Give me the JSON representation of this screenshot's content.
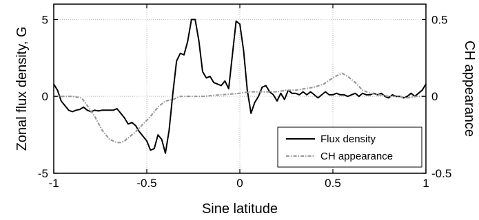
{
  "chart_data": {
    "type": "line",
    "xlabel": "Sine latitude",
    "ylabel_left": "Zonal flux density, G",
    "ylabel_right": "CH appearance",
    "xlim": [
      -1,
      1
    ],
    "ylim_left": [
      -5,
      6
    ],
    "ylim_right": [
      -0.5,
      0.6
    ],
    "x_ticks": [
      "-1",
      "-0.5",
      "0",
      "0.5",
      "1"
    ],
    "y_ticks_left": [
      "-5",
      "0",
      "5"
    ],
    "y_ticks_right": [
      "-0.5",
      "0",
      "0.5"
    ],
    "grid": true,
    "legend_position": "bottom-right",
    "series": [
      {
        "name": "Flux density",
        "axis": "left",
        "color": "#000000",
        "style": "solid",
        "x": [
          -1.0,
          -0.98,
          -0.96,
          -0.94,
          -0.92,
          -0.9,
          -0.88,
          -0.86,
          -0.84,
          -0.82,
          -0.8,
          -0.78,
          -0.76,
          -0.74,
          -0.72,
          -0.7,
          -0.68,
          -0.66,
          -0.64,
          -0.62,
          -0.6,
          -0.58,
          -0.56,
          -0.54,
          -0.52,
          -0.5,
          -0.48,
          -0.46,
          -0.44,
          -0.42,
          -0.4,
          -0.38,
          -0.36,
          -0.34,
          -0.32,
          -0.3,
          -0.28,
          -0.26,
          -0.24,
          -0.22,
          -0.2,
          -0.18,
          -0.16,
          -0.14,
          -0.12,
          -0.1,
          -0.08,
          -0.06,
          -0.04,
          -0.02,
          0.0,
          0.02,
          0.04,
          0.06,
          0.08,
          0.1,
          0.12,
          0.14,
          0.16,
          0.18,
          0.2,
          0.22,
          0.24,
          0.26,
          0.28,
          0.3,
          0.32,
          0.34,
          0.36,
          0.38,
          0.4,
          0.42,
          0.44,
          0.46,
          0.48,
          0.5,
          0.52,
          0.54,
          0.56,
          0.58,
          0.6,
          0.62,
          0.64,
          0.66,
          0.68,
          0.7,
          0.72,
          0.74,
          0.76,
          0.78,
          0.8,
          0.82,
          0.84,
          0.86,
          0.88,
          0.9,
          0.92,
          0.94,
          0.96,
          0.98,
          1.0
        ],
        "values": [
          0.8,
          0.4,
          -0.3,
          -0.6,
          -0.9,
          -1.0,
          -0.9,
          -0.85,
          -0.7,
          -0.9,
          -1.0,
          -0.9,
          -0.95,
          -0.9,
          -0.9,
          -0.9,
          -0.9,
          -0.8,
          -1.1,
          -1.4,
          -1.8,
          -1.7,
          -1.9,
          -2.3,
          -2.6,
          -2.9,
          -3.5,
          -3.4,
          -2.5,
          -2.8,
          -3.7,
          -2.2,
          0.2,
          2.3,
          2.8,
          2.7,
          3.6,
          5.0,
          5.0,
          3.6,
          1.6,
          1.2,
          1.3,
          0.9,
          0.8,
          0.7,
          1.0,
          0.5,
          2.7,
          4.9,
          4.7,
          3.0,
          0.4,
          -1.1,
          -0.4,
          0.0,
          0.6,
          0.7,
          0.3,
          0.1,
          -0.3,
          0.2,
          -0.2,
          0.4,
          0.2,
          0.2,
          0.1,
          0.3,
          0.1,
          0.3,
          0.1,
          -0.1,
          0.1,
          0.3,
          0.1,
          0.1,
          0.2,
          0.1,
          0.1,
          0.0,
          0.1,
          0.2,
          0.0,
          0.2,
          0.1,
          0.1,
          0.2,
          0.1,
          0.2,
          0.0,
          -0.1,
          0.1,
          0.0,
          0.0,
          -0.1,
          0.0,
          0.2,
          0.0,
          0.2,
          0.4,
          0.8
        ]
      },
      {
        "name": "CH appearance",
        "axis": "right",
        "color": "#999999",
        "style": "dash-dot",
        "x": [
          -1.0,
          -0.95,
          -0.9,
          -0.85,
          -0.82,
          -0.78,
          -0.74,
          -0.7,
          -0.66,
          -0.64,
          -0.62,
          -0.6,
          -0.56,
          -0.52,
          -0.48,
          -0.44,
          -0.4,
          -0.36,
          -0.32,
          -0.28,
          -0.2,
          -0.1,
          0.0,
          0.05,
          0.1,
          0.15,
          0.2,
          0.25,
          0.3,
          0.35,
          0.4,
          0.45,
          0.5,
          0.53,
          0.55,
          0.58,
          0.62,
          0.66,
          0.7,
          0.75,
          0.8,
          0.85,
          0.9,
          0.95,
          1.0
        ],
        "values": [
          0.0,
          0.0,
          0.0,
          -0.01,
          -0.06,
          -0.13,
          -0.22,
          -0.28,
          -0.3,
          -0.3,
          -0.29,
          -0.27,
          -0.23,
          -0.18,
          -0.13,
          -0.07,
          -0.03,
          -0.02,
          0.0,
          0.0,
          0.0,
          0.01,
          0.02,
          0.03,
          0.03,
          0.03,
          0.03,
          0.04,
          0.04,
          0.05,
          0.06,
          0.08,
          0.12,
          0.14,
          0.15,
          0.13,
          0.09,
          0.04,
          0.02,
          0.01,
          0.0,
          0.0,
          -0.01,
          0.0,
          0.0
        ]
      }
    ]
  }
}
